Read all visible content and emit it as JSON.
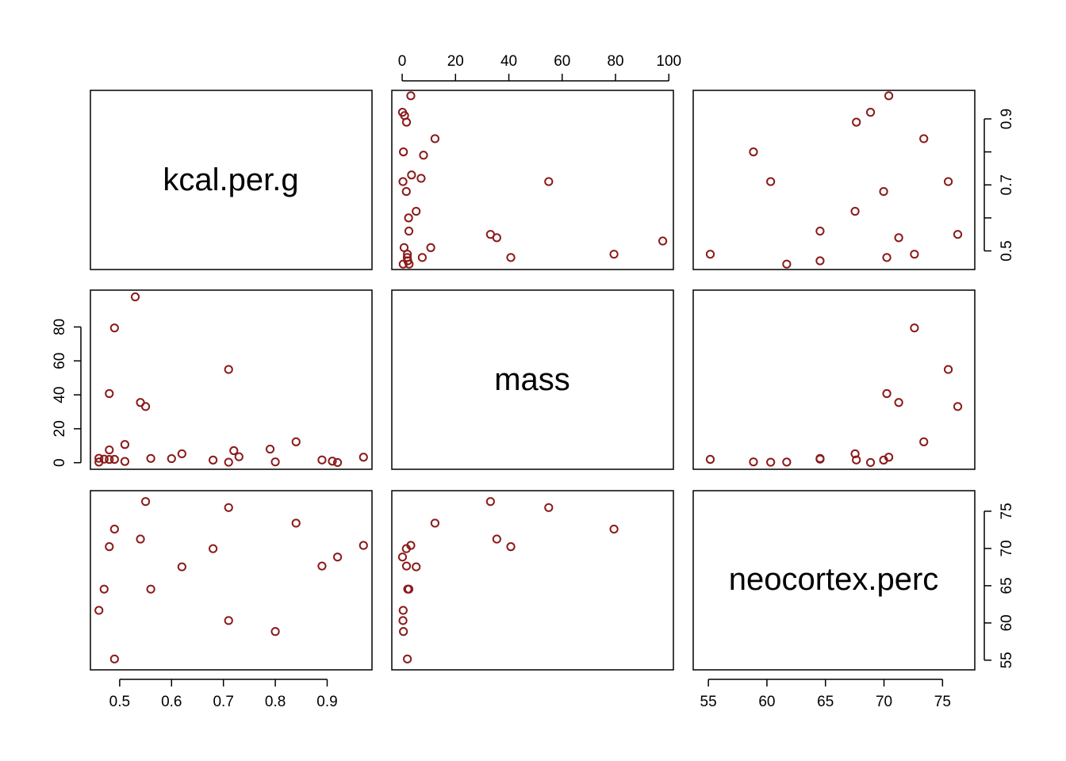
{
  "chart_data": {
    "type": "scatter",
    "plot_kind": "pairs",
    "variables": [
      "kcal.per.g",
      "mass",
      "neocortex.perc"
    ],
    "point_color": "#8B1A1A",
    "point_shape": "open-circle",
    "observations": [
      {
        "kcal.per.g": 0.49,
        "mass": 1.95,
        "neocortex.perc": 55.16
      },
      {
        "kcal.per.g": 0.47,
        "mass": 2.09,
        "neocortex.perc": 64.54
      },
      {
        "kcal.per.g": 0.56,
        "mass": 2.51,
        "neocortex.perc": 64.54
      },
      {
        "kcal.per.g": 0.89,
        "mass": 1.62,
        "neocortex.perc": 67.64
      },
      {
        "kcal.per.g": 0.92,
        "mass": 0.12,
        "neocortex.perc": 68.85
      },
      {
        "kcal.per.g": 0.8,
        "mass": 0.47,
        "neocortex.perc": 58.85
      },
      {
        "kcal.per.g": 0.46,
        "mass": 0.37,
        "neocortex.perc": 61.69
      },
      {
        "kcal.per.g": 0.71,
        "mass": 0.3,
        "neocortex.perc": 60.32
      },
      {
        "kcal.per.g": 0.68,
        "mass": 1.55,
        "neocortex.perc": 69.97
      },
      {
        "kcal.per.g": 0.97,
        "mass": 3.24,
        "neocortex.perc": 70.41
      },
      {
        "kcal.per.g": 0.84,
        "mass": 12.3,
        "neocortex.perc": 73.4
      },
      {
        "kcal.per.g": 0.62,
        "mass": 5.25,
        "neocortex.perc": 67.53
      },
      {
        "kcal.per.g": 0.54,
        "mass": 35.48,
        "neocortex.perc": 71.26
      },
      {
        "kcal.per.g": 0.49,
        "mass": 79.43,
        "neocortex.perc": 72.6
      },
      {
        "kcal.per.g": 0.48,
        "mass": 40.74,
        "neocortex.perc": 70.24
      },
      {
        "kcal.per.g": 0.55,
        "mass": 33.11,
        "neocortex.perc": 76.3
      },
      {
        "kcal.per.g": 0.71,
        "mass": 54.95,
        "neocortex.perc": 75.49
      }
    ],
    "extra_x_only": [
      {
        "kcal.per.g": 0.51,
        "mass": 0.72
      },
      {
        "kcal.per.g": 0.73,
        "mass": 3.51
      },
      {
        "kcal.per.g": 0.48,
        "mass": 7.53
      },
      {
        "kcal.per.g": 0.72,
        "mass": 7.1
      },
      {
        "kcal.per.g": 0.79,
        "mass": 8.0
      },
      {
        "kcal.per.g": 0.51,
        "mass": 10.72
      },
      {
        "kcal.per.g": 0.53,
        "mass": 97.72
      },
      {
        "kcal.per.g": 0.6,
        "mass": 2.4
      },
      {
        "kcal.per.g": 0.91,
        "mass": 0.9
      },
      {
        "kcal.per.g": 0.46,
        "mass": 2.6
      },
      {
        "kcal.per.g": 0.48,
        "mass": 1.9
      }
    ],
    "ranges": {
      "kcal.per.g": [
        0.4436,
        0.9864
      ],
      "mass": [
        -3.8861,
        101.7061
      ],
      "neocortex.perc": [
        53.7044,
        77.7556
      ]
    },
    "ticks": {
      "kcal.per.g": {
        "values": [
          0.5,
          0.6,
          0.7,
          0.8,
          0.9
        ],
        "labels": [
          "0.5",
          "0.6",
          "0.7",
          "0.8",
          "0.9"
        ]
      },
      "kcal.per.g_right": {
        "values": [
          0.5,
          0.6,
          0.7,
          0.8,
          0.9
        ],
        "labels": [
          "0.5",
          "",
          "0.7",
          "",
          "0.9"
        ]
      },
      "mass_top": {
        "values": [
          0,
          20,
          40,
          60,
          80,
          100
        ],
        "labels": [
          "0",
          "20",
          "40",
          "60",
          "80",
          "100"
        ]
      },
      "mass_left": {
        "values": [
          0,
          20,
          40,
          60,
          80
        ],
        "labels": [
          "0",
          "20",
          "40",
          "60",
          "80"
        ]
      },
      "neocortex.perc": {
        "values": [
          55,
          60,
          65,
          70,
          75
        ],
        "labels": [
          "55",
          "60",
          "65",
          "70",
          "75"
        ]
      }
    },
    "grid": false,
    "title": "",
    "legend": "none"
  }
}
